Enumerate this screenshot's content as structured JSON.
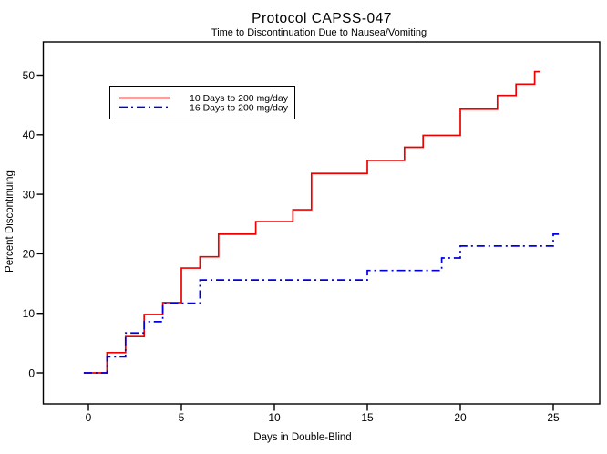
{
  "window": {
    "background": "#ffffff"
  },
  "chart_data": {
    "type": "line",
    "subtype": "step-function-kaplan-meier",
    "title": "Protocol CAPSS-047",
    "subtitle": "Time to Discontinuation Due to Nausea/Vomiting",
    "xlabel": "Days in Double-Blind",
    "ylabel": "Percent Discontinuing",
    "xlim": [
      -2.4,
      27.5
    ],
    "ylim": [
      0,
      55
    ],
    "x_ticks": [
      0,
      5,
      10,
      15,
      20,
      25
    ],
    "y_ticks": [
      0,
      10,
      20,
      30,
      40,
      50
    ],
    "grid": false,
    "legend_position": "upper-left-inside",
    "frame_color": "#000000",
    "series": [
      {
        "name": "10 Days to 200 mg/day",
        "color": "#ee0000",
        "style": "solid",
        "start_day": -0.25,
        "end_day": 24.3,
        "points": [
          [
            0,
            0
          ],
          [
            1,
            3.4
          ],
          [
            2,
            6.1
          ],
          [
            3,
            9.8
          ],
          [
            4,
            11.8
          ],
          [
            5,
            17.6
          ],
          [
            6,
            19.5
          ],
          [
            7,
            23.3
          ],
          [
            9,
            25.4
          ],
          [
            11,
            27.4
          ],
          [
            12,
            33.5
          ],
          [
            15,
            35.7
          ],
          [
            17,
            37.9
          ],
          [
            18,
            39.9
          ],
          [
            20,
            44.3
          ],
          [
            22,
            46.6
          ],
          [
            23,
            48.5
          ],
          [
            24,
            50.6
          ]
        ]
      },
      {
        "name": "16 Days to 200 mg/day",
        "color": "#0000dd",
        "style": "dash-dot",
        "start_day": -0.25,
        "end_day": 25.3,
        "points": [
          [
            0,
            0
          ],
          [
            1,
            2.7
          ],
          [
            2,
            6.7
          ],
          [
            3,
            8.6
          ],
          [
            4,
            11.7
          ],
          [
            6,
            15.6
          ],
          [
            15,
            17.2
          ],
          [
            19,
            19.3
          ],
          [
            20,
            21.3
          ],
          [
            25,
            23.3
          ]
        ]
      }
    ]
  }
}
